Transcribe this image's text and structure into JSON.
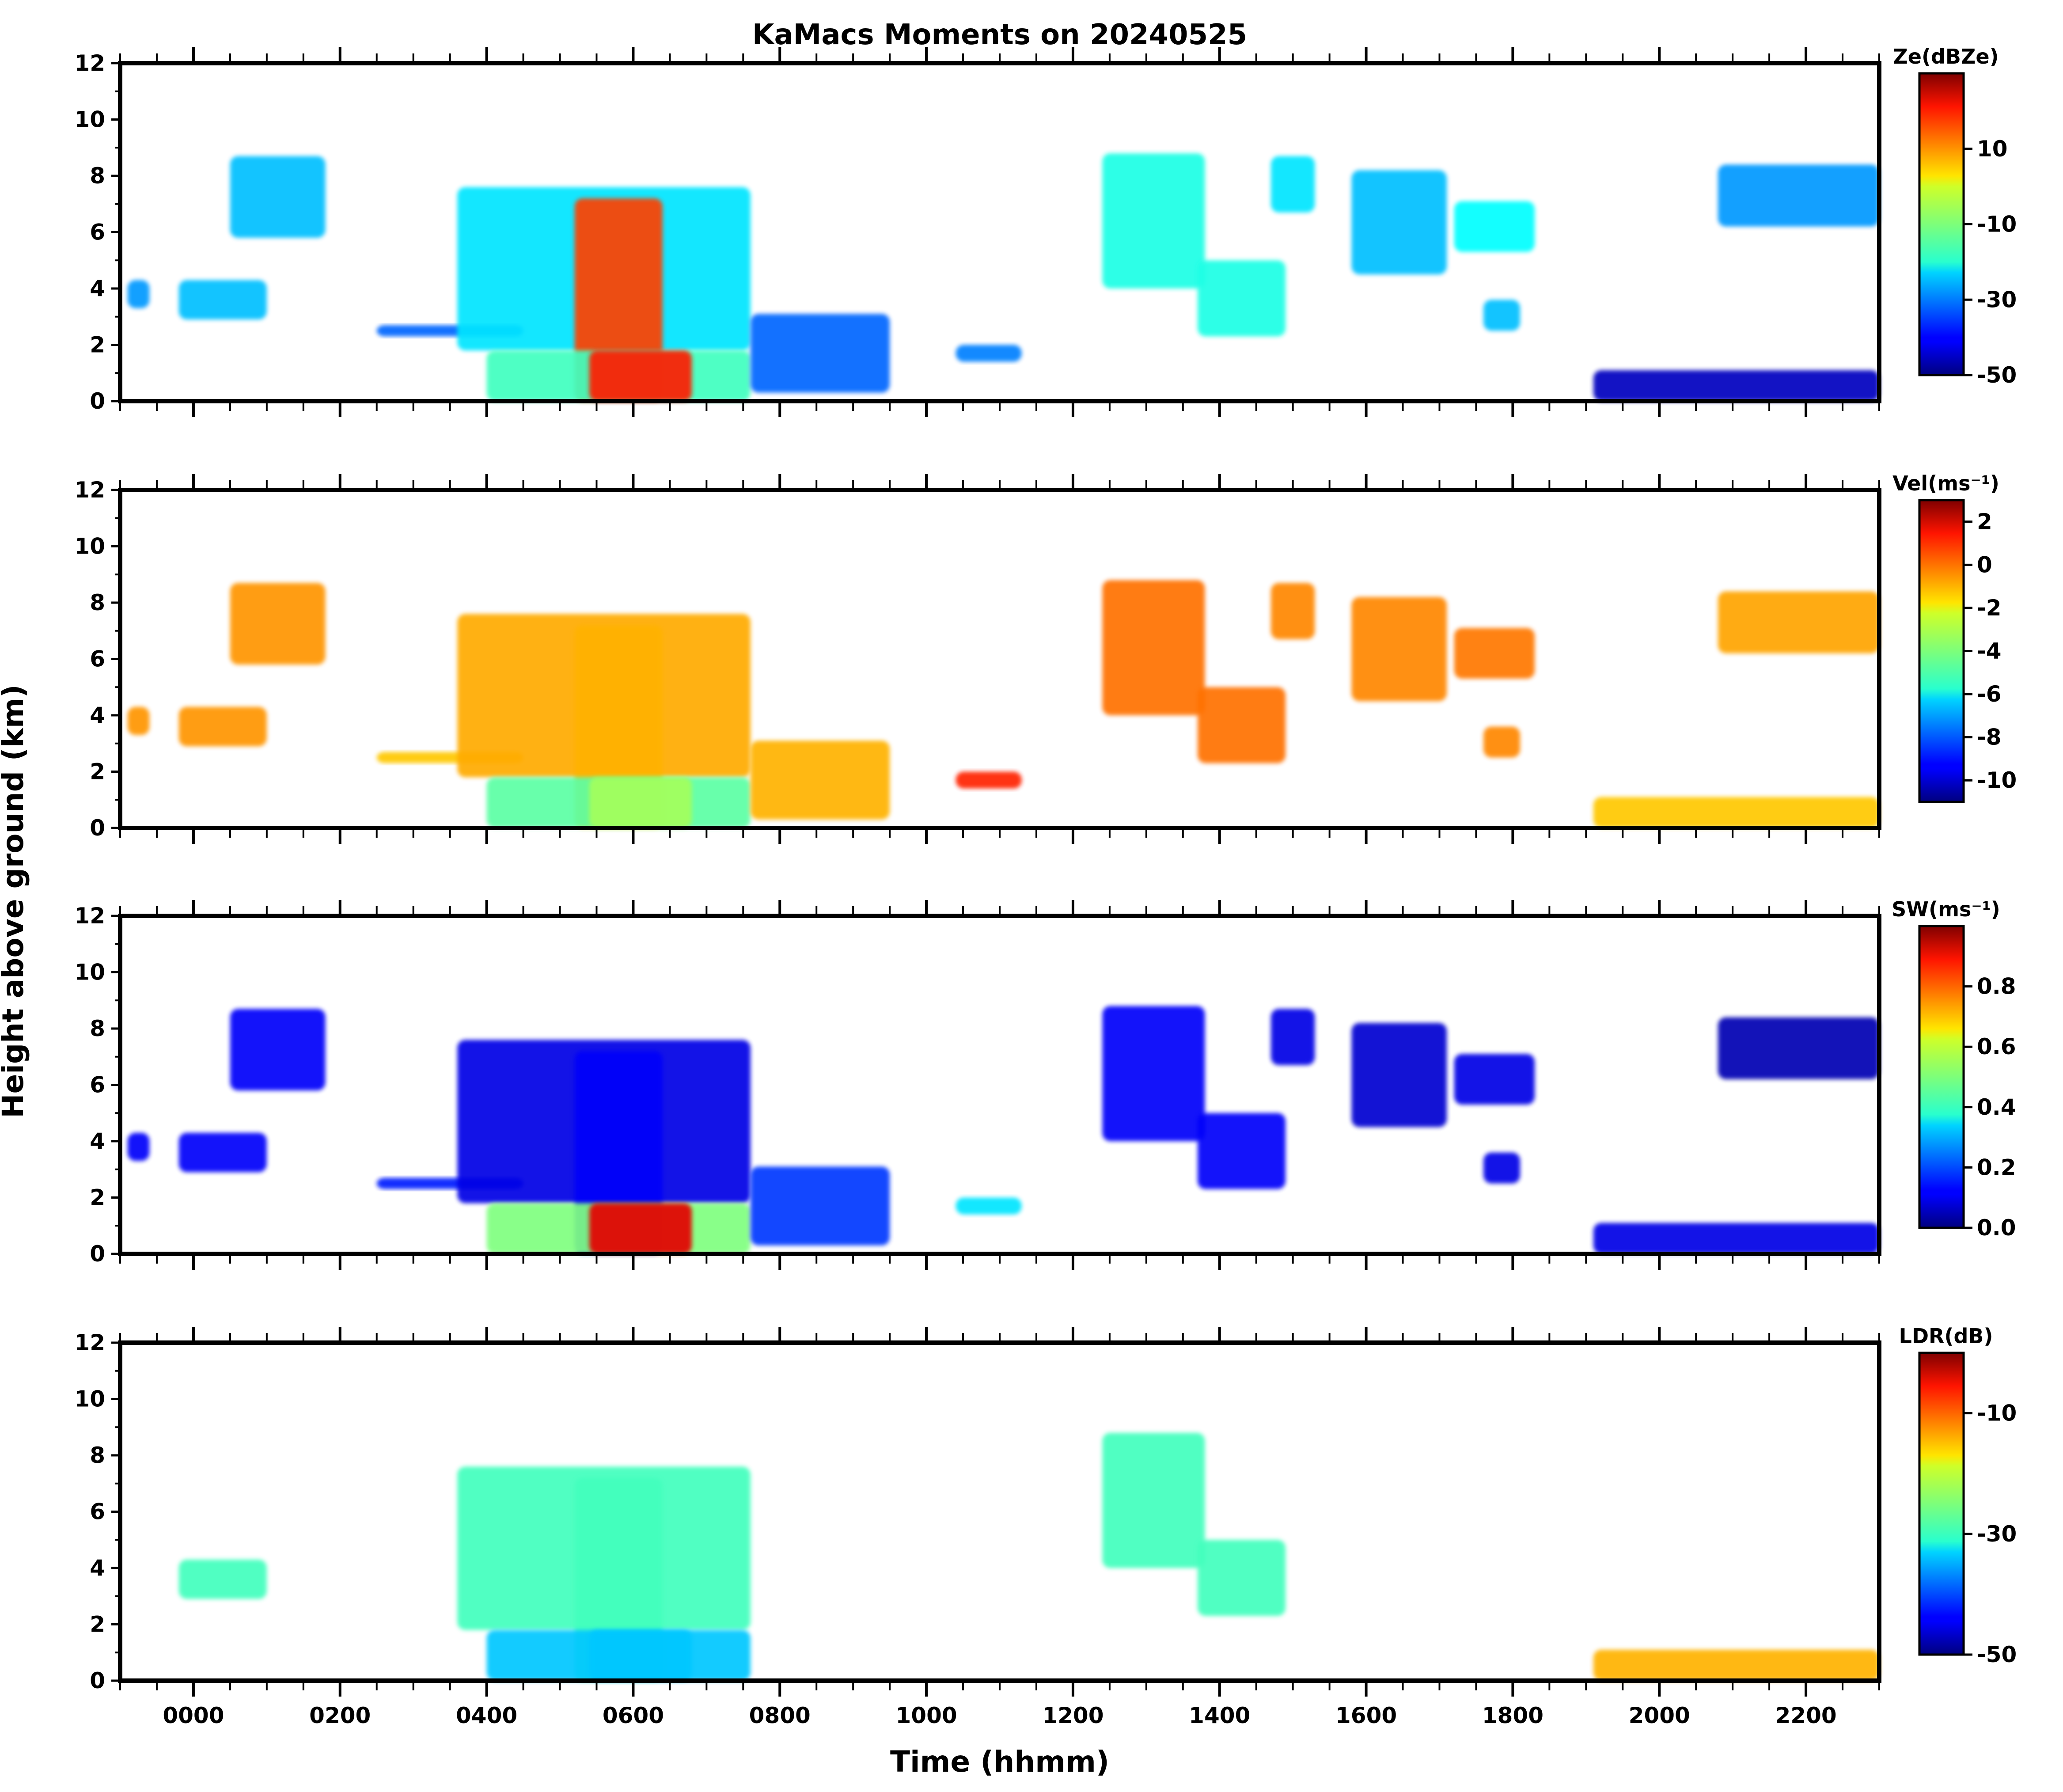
{
  "figure": {
    "title": "KaMacs Moments on 20240525",
    "xlabel": "Time (hhmm)",
    "ylabel": "Height above ground (km)"
  },
  "chart_data": {
    "type": "heatmap",
    "title": "KaMacs Moments on 20240525",
    "xlabel": "Time (hhmm)",
    "ylabel": "Height above ground (km)",
    "xlim": [
      "2300 (previous day)",
      "2300"
    ],
    "x_tick_labels": [
      "0000",
      "0200",
      "0400",
      "0600",
      "0800",
      "1000",
      "1200",
      "1400",
      "1600",
      "1800",
      "2000",
      "2200"
    ],
    "x_tick_values_hours": [
      0,
      2,
      4,
      6,
      8,
      10,
      12,
      14,
      16,
      18,
      20,
      22
    ],
    "x_range_hours": [
      -1,
      23
    ],
    "ylim": [
      0,
      12
    ],
    "y_ticks": [
      0,
      2,
      4,
      6,
      8,
      10,
      12
    ],
    "y_tick_labels": [
      "0",
      "2",
      "4",
      "6",
      "8",
      "10",
      "12"
    ],
    "colormap": "jet",
    "grid": false,
    "panels": [
      {
        "id": "ze",
        "colorbar_title": "Ze(dBZe)",
        "colorbar_range": [
          -50,
          30
        ],
        "colorbar_ticks": [
          10,
          -10,
          -30,
          -50
        ],
        "colorbar_tick_labels": [
          "10",
          "-10",
          "-30",
          "-50"
        ]
      },
      {
        "id": "vel",
        "colorbar_title": "Vel(ms⁻¹)",
        "colorbar_range": [
          -11,
          3
        ],
        "colorbar_ticks": [
          2,
          0,
          -2,
          -4,
          -6,
          -8,
          -10
        ],
        "colorbar_tick_labels": [
          "2",
          "0",
          "-2",
          "-4",
          "-6",
          "-8",
          "-10"
        ]
      },
      {
        "id": "sw",
        "colorbar_title": "SW(ms⁻¹)",
        "colorbar_range": [
          0,
          1
        ],
        "colorbar_ticks": [
          0.8,
          0.6,
          0.4,
          0.2,
          0.0
        ],
        "colorbar_tick_labels": [
          "0.8",
          "0.6",
          "0.4",
          "0.2",
          "0.0"
        ]
      },
      {
        "id": "ldr",
        "colorbar_title": "LDR(dB)",
        "colorbar_range": [
          -50,
          0
        ],
        "colorbar_ticks": [
          -10,
          -30,
          -50
        ],
        "colorbar_tick_labels": [
          "-10",
          "-30",
          "-50"
        ]
      }
    ],
    "echo_regions": [
      {
        "t": [
          0.5,
          1.8
        ],
        "h": [
          5.8,
          8.7
        ],
        "ze": -25,
        "vel": -0.8,
        "sw": 0.12,
        "ldr": null
      },
      {
        "t": [
          -0.9,
          -0.6
        ],
        "h": [
          3.3,
          4.3
        ],
        "ze": -28,
        "vel": -0.8,
        "sw": 0.12,
        "ldr": null
      },
      {
        "t": [
          -0.2,
          1.0
        ],
        "h": [
          2.9,
          4.3
        ],
        "ze": -25,
        "vel": -0.8,
        "sw": 0.12,
        "ldr": -28
      },
      {
        "t": [
          2.5,
          4.5
        ],
        "h": [
          2.3,
          2.7
        ],
        "ze": -32,
        "vel": -1.5,
        "sw": 0.15,
        "ldr": null
      },
      {
        "t": [
          3.6,
          7.6
        ],
        "h": [
          1.8,
          7.6
        ],
        "ze": -22,
        "vel": -1.1,
        "sw": 0.1,
        "ldr": -28
      },
      {
        "t": [
          5.2,
          6.4
        ],
        "h": [
          0.0,
          7.2
        ],
        "ze": 15,
        "vel": -1.2,
        "sw": 0.12,
        "ldr": -28
      },
      {
        "t": [
          4.0,
          7.6
        ],
        "h": [
          0.0,
          1.8
        ],
        "ze": -15,
        "vel": -4.5,
        "sw": 0.5,
        "ldr": -34
      },
      {
        "t": [
          5.4,
          6.8
        ],
        "h": [
          0.0,
          1.8
        ],
        "ze": 18,
        "vel": -3.5,
        "sw": 0.9,
        "ldr": -34
      },
      {
        "t": [
          7.6,
          9.5
        ],
        "h": [
          0.3,
          3.1
        ],
        "ze": -32,
        "vel": -1.2,
        "sw": 0.18,
        "ldr": null
      },
      {
        "t": [
          10.4,
          11.3
        ],
        "h": [
          1.4,
          2.0
        ],
        "ze": -30,
        "vel": 0.8,
        "sw": 0.35,
        "ldr": null
      },
      {
        "t": [
          12.4,
          13.8
        ],
        "h": [
          4.0,
          8.8
        ],
        "ze": -18,
        "vel": -0.3,
        "sw": 0.12,
        "ldr": -28
      },
      {
        "t": [
          13.7,
          14.9
        ],
        "h": [
          2.3,
          5.0
        ],
        "ze": -18,
        "vel": -0.3,
        "sw": 0.12,
        "ldr": -28
      },
      {
        "t": [
          14.7,
          15.3
        ],
        "h": [
          6.7,
          8.7
        ],
        "ze": -22,
        "vel": -0.6,
        "sw": 0.1,
        "ldr": null
      },
      {
        "t": [
          15.8,
          17.1
        ],
        "h": [
          4.5,
          8.2
        ],
        "ze": -25,
        "vel": -0.6,
        "sw": 0.08,
        "ldr": null
      },
      {
        "t": [
          17.2,
          18.3
        ],
        "h": [
          5.3,
          7.1
        ],
        "ze": -20,
        "vel": -0.4,
        "sw": 0.1,
        "ldr": null
      },
      {
        "t": [
          17.6,
          18.1
        ],
        "h": [
          2.5,
          3.6
        ],
        "ze": -25,
        "vel": -0.6,
        "sw": 0.1,
        "ldr": null
      },
      {
        "t": [
          20.8,
          23.0
        ],
        "h": [
          6.2,
          8.4
        ],
        "ze": -28,
        "vel": -1.0,
        "sw": 0.05,
        "ldr": null
      },
      {
        "t": [
          19.1,
          23.0
        ],
        "h": [
          0.0,
          1.1
        ],
        "ze": -45,
        "vel": -1.5,
        "sw": 0.1,
        "ldr": -15
      }
    ]
  }
}
